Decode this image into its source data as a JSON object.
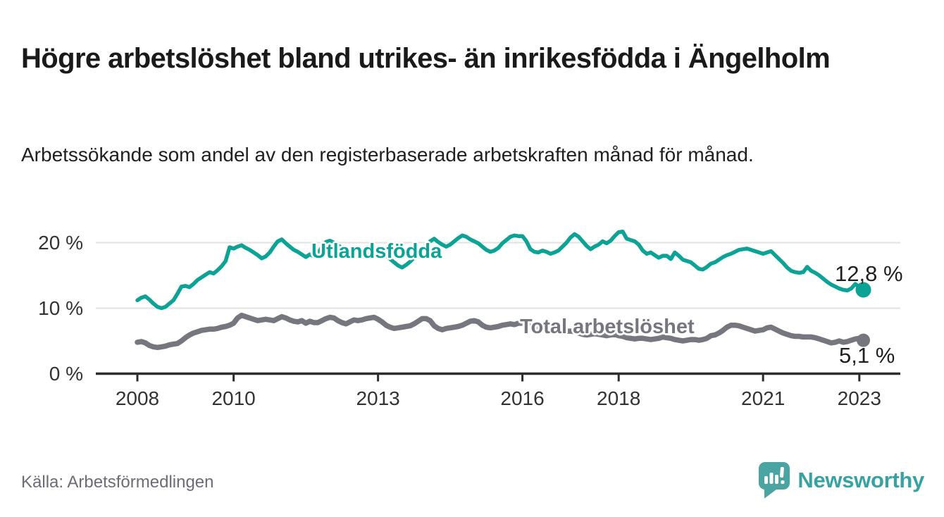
{
  "header": {
    "title": "Högre arbetslöshet bland utrikes- än inrikesfödda i Ängelholm",
    "subtitle": "Arbetssökande som andel av den registerbaserade arbetskraften månad för månad."
  },
  "chart_data": {
    "type": "line",
    "x_unit": "month",
    "x_start": "2008-01",
    "x_end": "2023-02",
    "ylim": [
      0,
      23
    ],
    "grid": "horizontal",
    "legend": "inline-labels",
    "yticks": [
      {
        "value": 0,
        "label": "0 %"
      },
      {
        "value": 10,
        "label": "10 %"
      },
      {
        "value": 20,
        "label": "20 %"
      }
    ],
    "xticks": [
      {
        "year": 2008,
        "label": "2008"
      },
      {
        "year": 2010,
        "label": "2010"
      },
      {
        "year": 2013,
        "label": "2013"
      },
      {
        "year": 2016,
        "label": "2016"
      },
      {
        "year": 2018,
        "label": "2018"
      },
      {
        "year": 2021,
        "label": "2021"
      },
      {
        "year": 2023,
        "label": "2023"
      }
    ],
    "series": [
      {
        "name": "Utlandsfödda",
        "color": "#0aa396",
        "end_label": "12,8 %",
        "end_value": 12.8,
        "values": [
          11.2,
          11.6,
          11.8,
          11.3,
          10.7,
          10.2,
          10.0,
          10.2,
          10.7,
          11.2,
          12.2,
          13.3,
          13.4,
          13.2,
          13.7,
          14.3,
          14.7,
          15.1,
          15.5,
          15.3,
          15.8,
          16.4,
          17.2,
          19.3,
          19.1,
          19.4,
          19.6,
          19.2,
          18.9,
          18.5,
          18.1,
          17.6,
          17.9,
          18.5,
          19.4,
          20.2,
          20.5,
          19.9,
          19.4,
          18.9,
          18.6,
          18.2,
          17.8,
          18.2,
          17.9,
          18.4,
          19.3,
          20.1,
          20.3,
          20.0,
          19.6,
          19.2,
          18.8,
          18.5,
          18.2,
          18.4,
          18.1,
          18.4,
          18.8,
          19.2,
          19.0,
          18.6,
          18.1,
          17.5,
          17.0,
          16.5,
          16.2,
          16.6,
          17.1,
          17.7,
          18.3,
          19.0,
          19.6,
          20.2,
          20.6,
          20.1,
          19.7,
          19.4,
          19.7,
          20.2,
          20.7,
          21.1,
          20.9,
          20.5,
          20.2,
          19.9,
          19.4,
          18.9,
          18.6,
          18.8,
          19.2,
          19.9,
          20.4,
          20.9,
          21.1,
          21.0,
          21.0,
          20.2,
          19.0,
          18.6,
          18.5,
          18.8,
          18.6,
          18.3,
          18.5,
          18.8,
          19.4,
          20.0,
          20.8,
          21.3,
          20.9,
          20.2,
          19.5,
          19.0,
          19.4,
          19.7,
          20.2,
          19.9,
          20.3,
          21.0,
          21.6,
          21.7,
          20.6,
          20.4,
          20.2,
          19.7,
          18.8,
          18.3,
          18.5,
          18.1,
          17.7,
          18.0,
          18.0,
          17.5,
          18.5,
          18.0,
          17.4,
          17.2,
          17.0,
          16.5,
          16.0,
          15.9,
          16.3,
          16.8,
          17.0,
          17.4,
          17.8,
          18.1,
          18.3,
          18.6,
          18.9,
          19.0,
          19.1,
          18.9,
          18.7,
          18.5,
          18.3,
          18.5,
          18.7,
          18.1,
          17.5,
          16.9,
          16.2,
          15.7,
          15.5,
          15.4,
          15.5,
          16.3,
          15.7,
          15.4,
          15.0,
          14.5,
          14.0,
          13.6,
          13.3,
          13.0,
          12.8,
          12.7,
          13.0,
          13.7,
          13.2,
          12.8
        ]
      },
      {
        "name": "Total arbetslöshet",
        "color": "#76767e",
        "end_label": "5,1 %",
        "end_value": 5.1,
        "values": [
          4.8,
          4.9,
          4.7,
          4.3,
          4.1,
          4.0,
          4.1,
          4.2,
          4.4,
          4.5,
          4.6,
          5.0,
          5.5,
          5.9,
          6.2,
          6.4,
          6.6,
          6.7,
          6.8,
          6.8,
          6.9,
          7.1,
          7.2,
          7.4,
          7.7,
          8.5,
          8.9,
          8.7,
          8.5,
          8.3,
          8.1,
          8.2,
          8.3,
          8.2,
          8.1,
          8.4,
          8.7,
          8.5,
          8.2,
          8.0,
          7.9,
          8.1,
          7.7,
          8.0,
          7.8,
          7.8,
          8.1,
          8.4,
          8.6,
          8.5,
          8.1,
          7.8,
          7.6,
          7.9,
          8.2,
          8.1,
          8.2,
          8.4,
          8.5,
          8.6,
          8.3,
          7.9,
          7.4,
          7.1,
          6.9,
          7.0,
          7.1,
          7.2,
          7.3,
          7.6,
          8.0,
          8.4,
          8.4,
          8.1,
          7.3,
          6.9,
          6.7,
          6.9,
          7.0,
          7.1,
          7.2,
          7.4,
          7.7,
          8.0,
          8.1,
          7.9,
          7.4,
          7.1,
          7.0,
          7.1,
          7.2,
          7.4,
          7.5,
          7.6,
          7.5,
          7.7,
          7.7,
          7.6,
          7.4,
          7.2,
          7.0,
          6.9,
          6.9,
          6.8,
          6.7,
          6.6,
          6.5,
          6.5,
          6.5,
          6.4,
          6.2,
          6.0,
          5.9,
          6.0,
          6.1,
          6.0,
          5.9,
          5.8,
          5.9,
          6.0,
          5.8,
          5.7,
          5.5,
          5.4,
          5.3,
          5.4,
          5.4,
          5.3,
          5.2,
          5.3,
          5.4,
          5.6,
          5.5,
          5.4,
          5.2,
          5.1,
          5.0,
          5.1,
          5.2,
          5.2,
          5.1,
          5.2,
          5.4,
          5.8,
          5.9,
          6.2,
          6.6,
          7.1,
          7.4,
          7.4,
          7.3,
          7.1,
          6.9,
          6.7,
          6.5,
          6.6,
          6.7,
          7.0,
          7.1,
          6.8,
          6.5,
          6.2,
          6.0,
          5.8,
          5.7,
          5.7,
          5.6,
          5.6,
          5.6,
          5.5,
          5.3,
          5.1,
          4.9,
          4.7,
          4.8,
          5.0,
          4.8,
          4.9,
          5.1,
          5.3,
          5.4,
          5.1
        ]
      }
    ]
  },
  "footer": {
    "source": "Källa: Arbetsförmedlingen",
    "brand": "Newsworthy"
  },
  "colors": {
    "accent_teal": "#0aa396",
    "series_gray": "#76767e",
    "brand_teal": "#38a1a1",
    "logo_bubble": "#4aa5a2",
    "gridline": "#e2e2e2",
    "axis": "#2d2d2d"
  }
}
